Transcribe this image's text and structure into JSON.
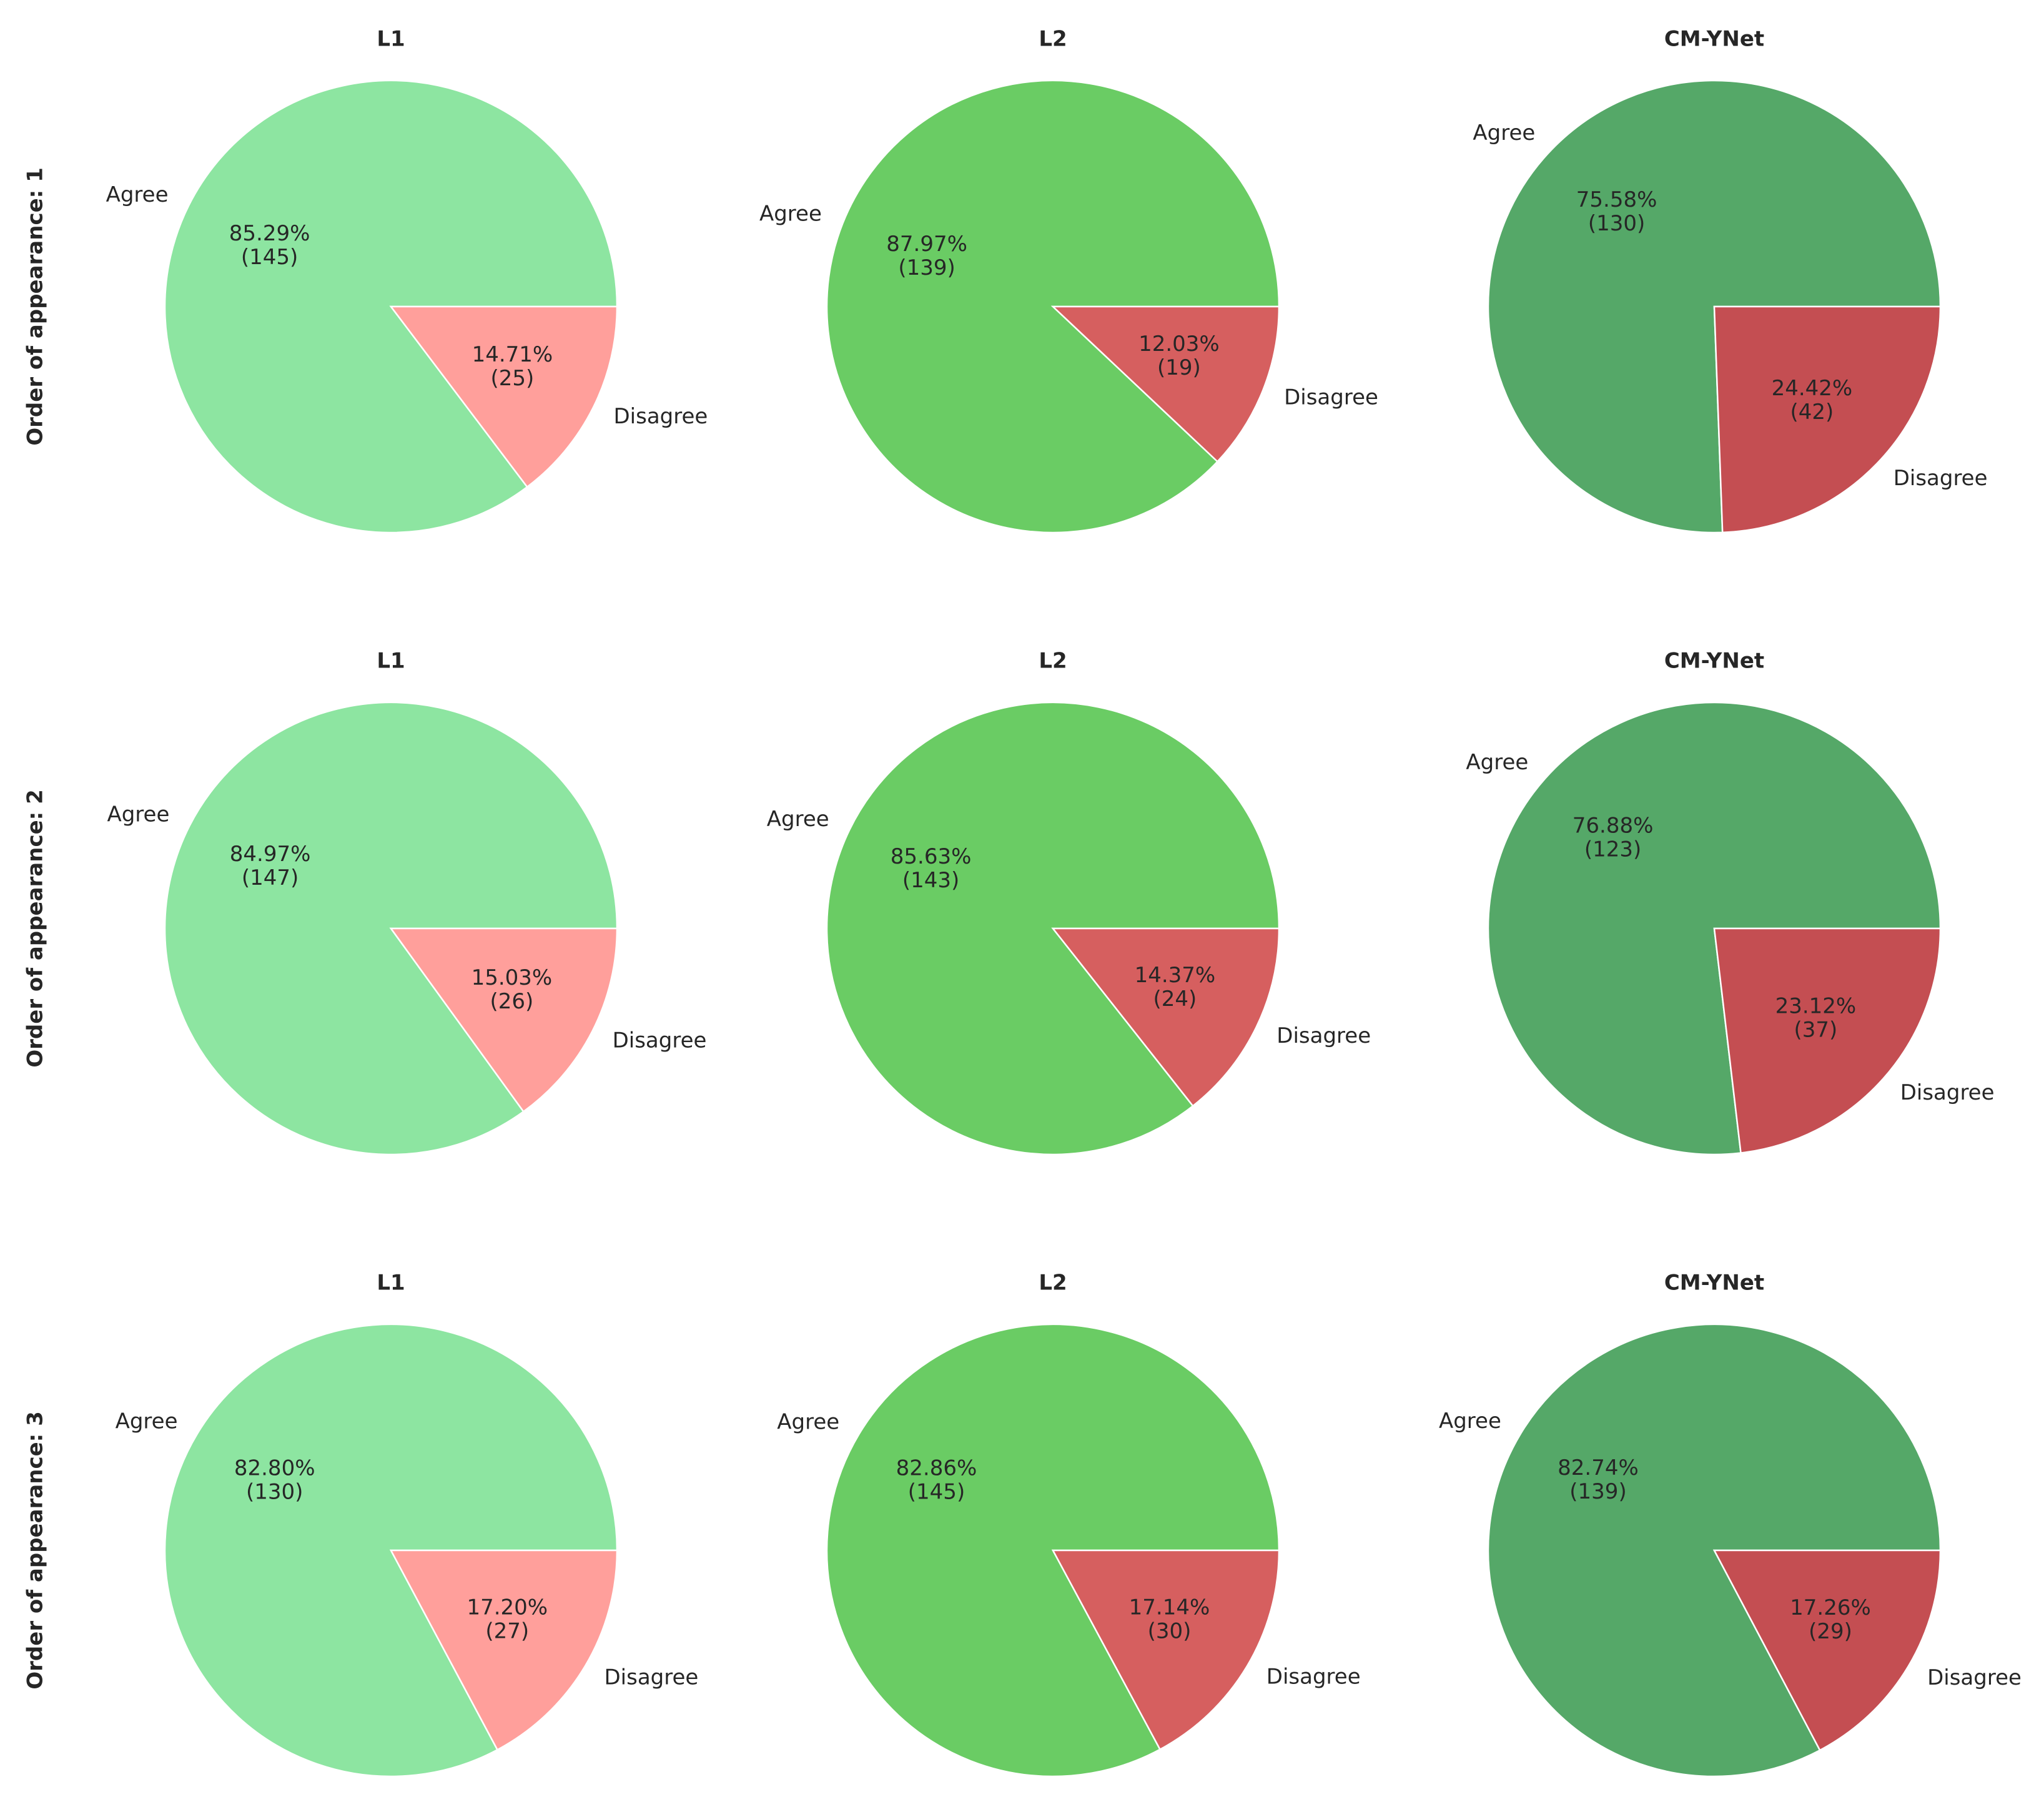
{
  "figure": {
    "row_labels": [
      "Order of appearance: 1",
      "Order of appearance: 2",
      "Order of appearance: 3"
    ],
    "column_titles": [
      "L1",
      "L2",
      "CM-YNet"
    ]
  },
  "chart_data": [
    {
      "type": "pie",
      "row": 0,
      "col": 0,
      "title": "L1",
      "ylabel": "Order of appearance: 1",
      "labels": [
        "Agree",
        "Disagree"
      ],
      "values": [
        145,
        25
      ],
      "pct_labels": [
        "85.29%\n(145)",
        "14.71%\n(25)"
      ],
      "colors": [
        "#8de5a1",
        "#ff9f9b"
      ]
    },
    {
      "type": "pie",
      "row": 0,
      "col": 1,
      "title": "L2",
      "labels": [
        "Agree",
        "Disagree"
      ],
      "values": [
        139,
        19
      ],
      "pct_labels": [
        "87.97%\n(139)",
        "12.03%\n(19)"
      ],
      "colors": [
        "#6acc64",
        "#d65f5f"
      ]
    },
    {
      "type": "pie",
      "row": 0,
      "col": 2,
      "title": "CM-YNet",
      "labels": [
        "Agree",
        "Disagree"
      ],
      "values": [
        130,
        42
      ],
      "pct_labels": [
        "75.58%\n(130)",
        "24.42%\n(42)"
      ],
      "colors": [
        "#55a868",
        "#c44e52"
      ]
    },
    {
      "type": "pie",
      "row": 1,
      "col": 0,
      "title": "L1",
      "ylabel": "Order of appearance: 2",
      "labels": [
        "Agree",
        "Disagree"
      ],
      "values": [
        147,
        26
      ],
      "pct_labels": [
        "84.97%\n(147)",
        "15.03%\n(26)"
      ],
      "colors": [
        "#8de5a1",
        "#ff9f9b"
      ]
    },
    {
      "type": "pie",
      "row": 1,
      "col": 1,
      "title": "L2",
      "labels": [
        "Agree",
        "Disagree"
      ],
      "values": [
        143,
        24
      ],
      "pct_labels": [
        "85.63%\n(143)",
        "14.37%\n(24)"
      ],
      "colors": [
        "#6acc64",
        "#d65f5f"
      ]
    },
    {
      "type": "pie",
      "row": 1,
      "col": 2,
      "title": "CM-YNet",
      "labels": [
        "Agree",
        "Disagree"
      ],
      "values": [
        123,
        37
      ],
      "pct_labels": [
        "76.88%\n(123)",
        "23.12%\n(37)"
      ],
      "colors": [
        "#55a868",
        "#c44e52"
      ]
    },
    {
      "type": "pie",
      "row": 2,
      "col": 0,
      "title": "L1",
      "ylabel": "Order of appearance: 3",
      "labels": [
        "Agree",
        "Disagree"
      ],
      "values": [
        130,
        27
      ],
      "pct_labels": [
        "82.80%\n(130)",
        "17.20%\n(27)"
      ],
      "colors": [
        "#8de5a1",
        "#ff9f9b"
      ]
    },
    {
      "type": "pie",
      "row": 2,
      "col": 1,
      "title": "L2",
      "labels": [
        "Agree",
        "Disagree"
      ],
      "values": [
        145,
        30
      ],
      "pct_labels": [
        "82.86%\n(145)",
        "17.14%\n(30)"
      ],
      "colors": [
        "#6acc64",
        "#d65f5f"
      ]
    },
    {
      "type": "pie",
      "row": 2,
      "col": 2,
      "title": "CM-YNet",
      "labels": [
        "Agree",
        "Disagree"
      ],
      "values": [
        139,
        29
      ],
      "pct_labels": [
        "82.74%\n(139)",
        "17.26%\n(29)"
      ],
      "colors": [
        "#55a868",
        "#c44e52"
      ]
    }
  ]
}
